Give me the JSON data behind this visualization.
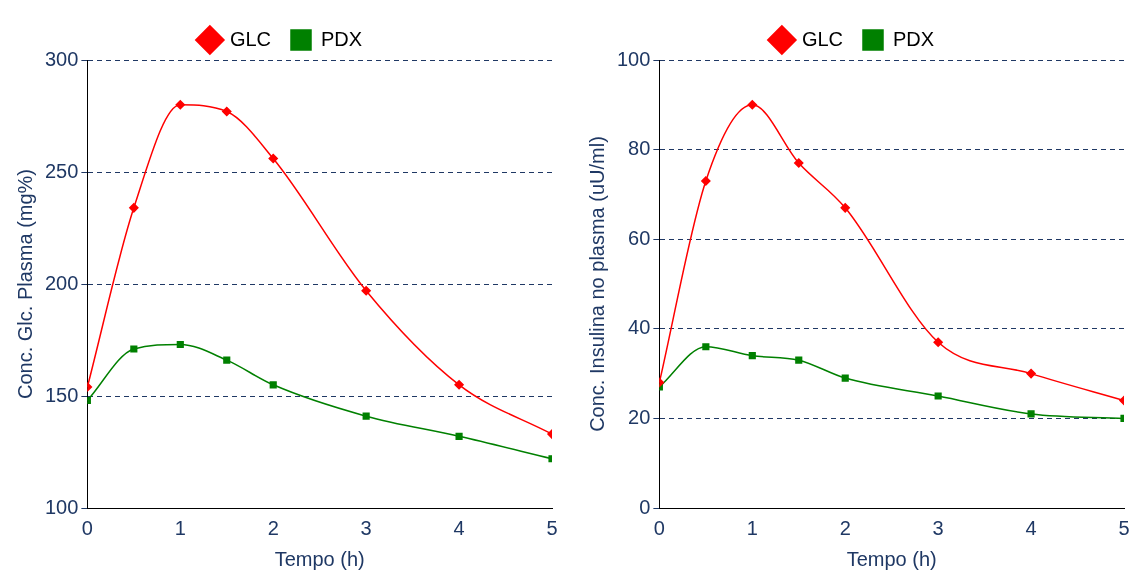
{
  "chart_data": [
    {
      "type": "line",
      "xlabel": "Tempo (h)",
      "ylabel": "Conc. Glc. Plasma (mg%)",
      "x": [
        0,
        0.5,
        1,
        1.5,
        2,
        3,
        4,
        5
      ],
      "xlim": [
        0,
        5
      ],
      "xticks": [
        0,
        1,
        2,
        3,
        4,
        5
      ],
      "ylim": [
        100,
        300
      ],
      "yticks": [
        100,
        150,
        200,
        250,
        300
      ],
      "grid": "y",
      "legend": "top",
      "series": [
        {
          "name": "GLC",
          "color": "#ff0000",
          "marker": "diamond",
          "values": [
            154,
            234,
            280,
            277,
            256,
            197,
            155,
            133
          ]
        },
        {
          "name": "PDX",
          "color": "#008000",
          "marker": "square",
          "values": [
            148,
            171,
            173,
            166,
            155,
            141,
            132,
            122
          ]
        }
      ]
    },
    {
      "type": "line",
      "xlabel": "Tempo (h)",
      "ylabel": "Conc. Insulina no plasma (uU/ml)",
      "x": [
        0,
        0.5,
        1,
        1.5,
        2,
        3,
        4,
        5
      ],
      "xlim": [
        0,
        5
      ],
      "xticks": [
        0,
        1,
        2,
        3,
        4,
        5
      ],
      "ylim": [
        0,
        100
      ],
      "yticks": [
        0,
        20,
        40,
        60,
        80,
        100
      ],
      "grid": "y",
      "legend": "top",
      "series": [
        {
          "name": "GLC",
          "color": "#ff0000",
          "marker": "diamond",
          "values": [
            28,
            73,
            90,
            77,
            67,
            37,
            30,
            24
          ]
        },
        {
          "name": "PDX",
          "color": "#008000",
          "marker": "square",
          "values": [
            27,
            36,
            34,
            33,
            29,
            25,
            21,
            20
          ]
        }
      ]
    }
  ]
}
